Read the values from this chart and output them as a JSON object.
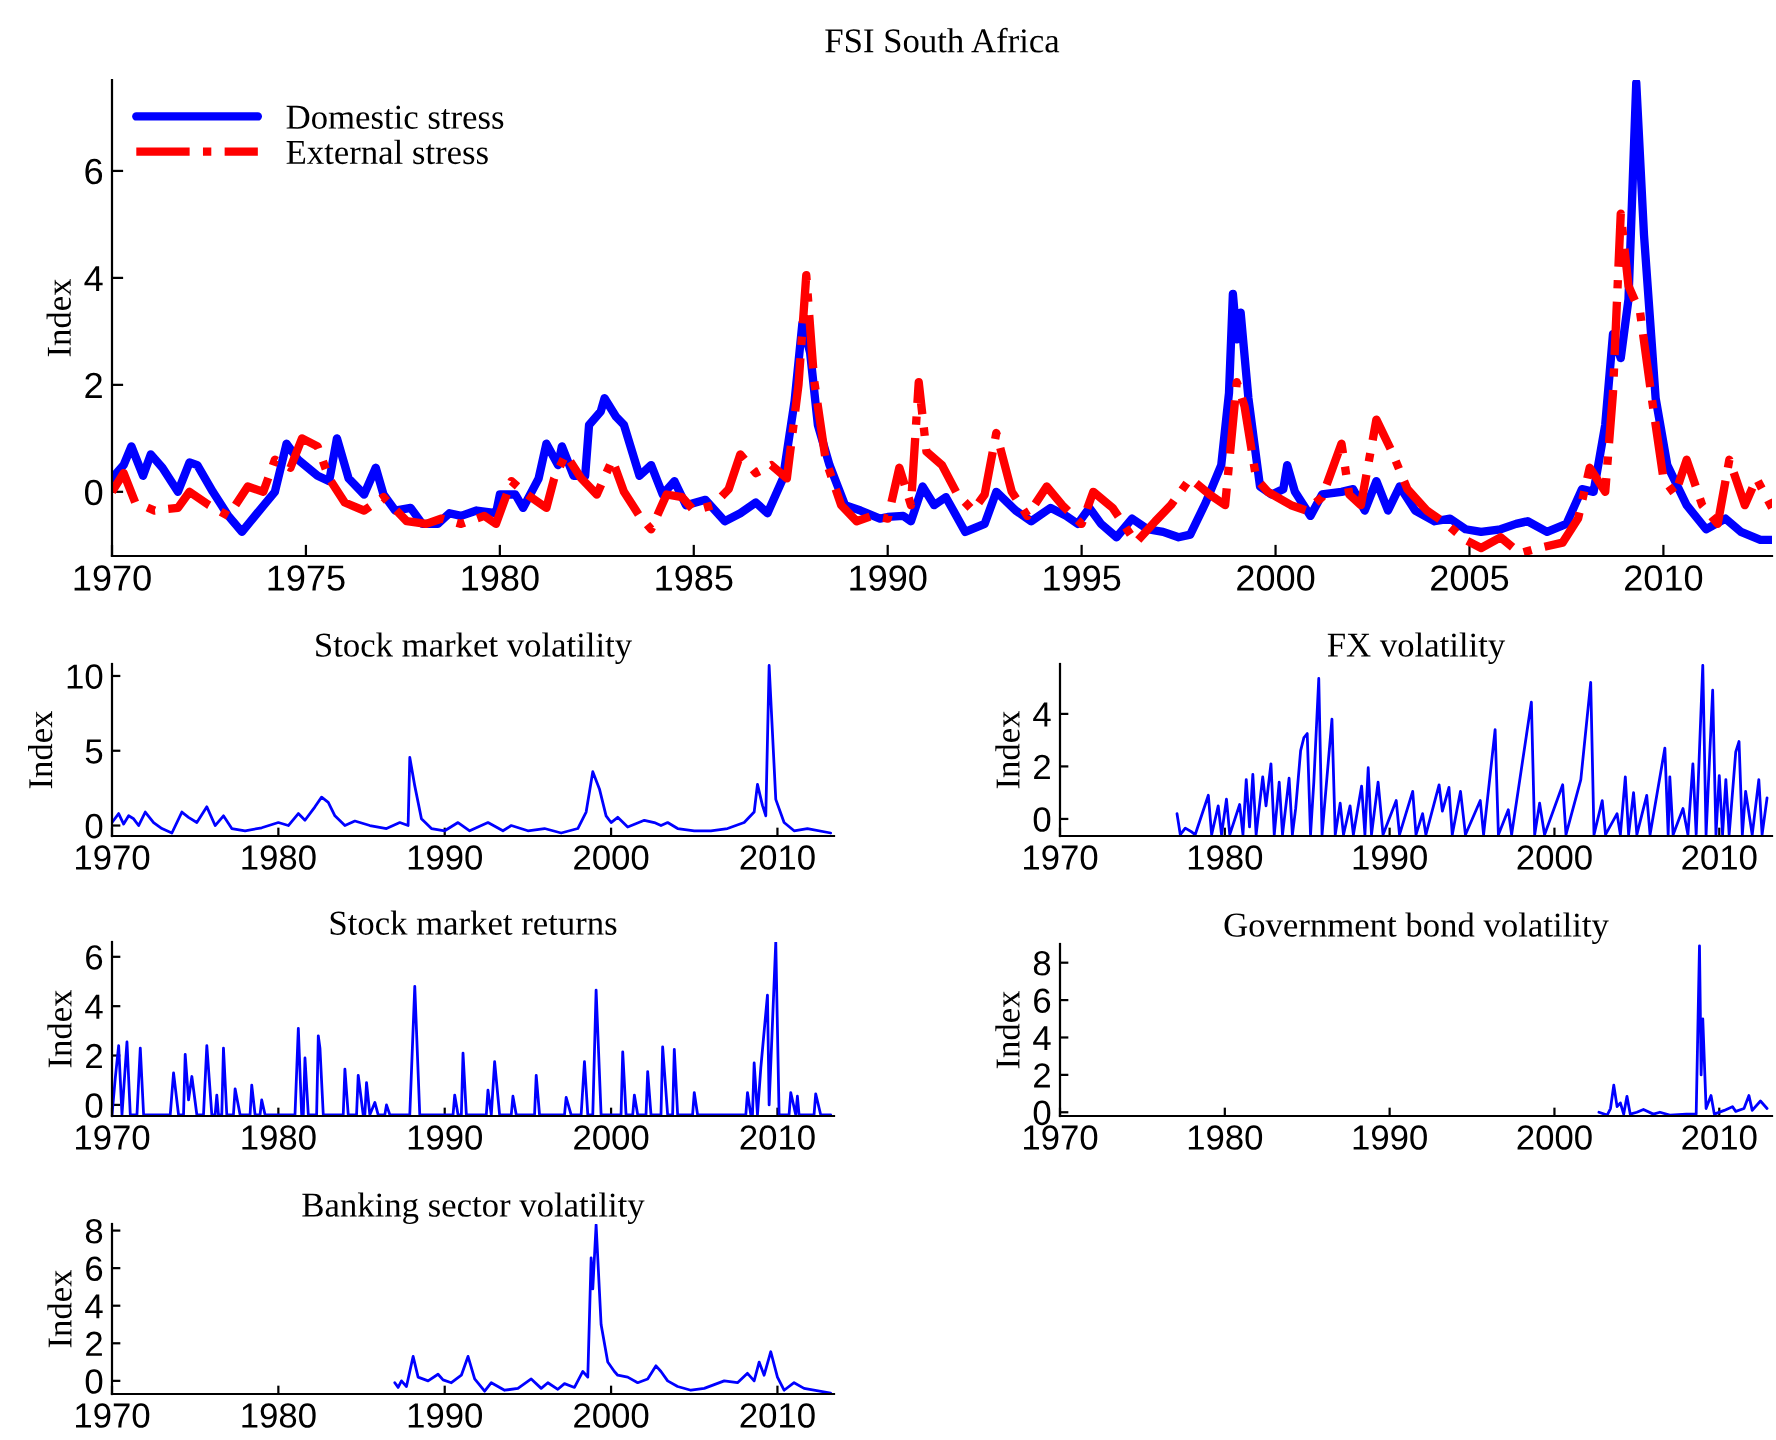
{
  "chart_data": [
    {
      "type": "line",
      "title": "FSI South Africa",
      "ylabel": "Index",
      "xlim": [
        1970,
        2012.8
      ],
      "ylim": [
        -1.2,
        7.7
      ],
      "xticks": [
        1970,
        1975,
        1980,
        1985,
        1990,
        1995,
        2000,
        2005,
        2010
      ],
      "yticks": [
        0,
        2,
        4,
        6
      ],
      "legend": "top left",
      "series": [
        {
          "name": "Domestic stress",
          "color": "#0000ff",
          "line_style": "solid",
          "x": [
            1970.0,
            1970.3,
            1970.5,
            1970.8,
            1971.0,
            1971.3,
            1971.7,
            1972.0,
            1972.2,
            1972.6,
            1973.0,
            1973.35,
            1973.8,
            1974.2,
            1974.5,
            1974.8,
            1975.3,
            1975.6,
            1975.8,
            1976.1,
            1976.5,
            1976.8,
            1977.0,
            1977.3,
            1977.7,
            1978.0,
            1978.4,
            1978.7,
            1979.0,
            1979.4,
            1979.9,
            1980.0,
            1980.4,
            1980.6,
            1981.0,
            1981.2,
            1981.5,
            1981.6,
            1981.9,
            1982.2,
            1982.3,
            1982.6,
            1982.7,
            1983.0,
            1983.2,
            1983.6,
            1983.9,
            1984.2,
            1984.5,
            1984.8,
            1985.3,
            1985.8,
            1986.2,
            1986.6,
            1986.9,
            1987.3,
            1987.6,
            1987.8,
            1988.0,
            1988.2,
            1988.5,
            1988.9,
            1989.3,
            1989.8,
            1990.0,
            1990.4,
            1990.6,
            1990.9,
            1991.2,
            1991.5,
            1992.0,
            1992.5,
            1992.8,
            1993.3,
            1993.7,
            1994.2,
            1994.6,
            1994.9,
            1995.2,
            1995.5,
            1995.9,
            1996.3,
            1996.7,
            1997.1,
            1997.5,
            1997.8,
            1998.2,
            1998.6,
            1998.8,
            1998.9,
            1999.0,
            1999.1,
            1999.3,
            1999.6,
            1999.9,
            2000.2,
            2000.3,
            2000.5,
            2000.9,
            2001.2,
            2001.7,
            2002.0,
            2002.3,
            2002.6,
            2002.9,
            2003.2,
            2003.6,
            2004.1,
            2004.5,
            2004.9,
            2005.3,
            2005.8,
            2006.2,
            2006.5,
            2007.0,
            2007.5,
            2007.9,
            2008.2,
            2008.5,
            2008.7,
            2008.9,
            2009.1,
            2009.3,
            2009.5,
            2009.8,
            2010.1,
            2010.6,
            2011.1,
            2011.6,
            2012.0,
            2012.5,
            2012.8
          ],
          "values": [
            0.25,
            0.5,
            0.85,
            0.3,
            0.7,
            0.45,
            0,
            0.55,
            0.5,
            0,
            -0.45,
            -0.75,
            -0.35,
            0,
            0.9,
            0.6,
            0.3,
            0.2,
            1.0,
            0.25,
            -0.05,
            0.45,
            -0.05,
            -0.35,
            -0.3,
            -0.6,
            -0.6,
            -0.4,
            -0.45,
            -0.35,
            -0.4,
            -0.05,
            -0.05,
            -0.3,
            0.25,
            0.9,
            0.5,
            0.85,
            0.3,
            0.3,
            1.25,
            1.5,
            1.75,
            1.4,
            1.25,
            0.3,
            0.5,
            -0.05,
            0.2,
            -0.25,
            -0.15,
            -0.55,
            -0.4,
            -0.2,
            -0.4,
            0.25,
            1.7,
            3.15,
            2.6,
            1.25,
            0.5,
            -0.25,
            -0.35,
            -0.5,
            -0.47,
            -0.45,
            -0.55,
            0.1,
            -0.25,
            -0.1,
            -0.75,
            -0.6,
            0,
            -0.35,
            -0.55,
            -0.3,
            -0.45,
            -0.6,
            -0.3,
            -0.6,
            -0.85,
            -0.5,
            -0.7,
            -0.75,
            -0.85,
            -0.8,
            -0.2,
            0.5,
            1.85,
            3.7,
            2.85,
            3.35,
            1.75,
            0.1,
            -0.05,
            0.05,
            0.5,
            0,
            -0.45,
            -0.05,
            0,
            0.05,
            -0.35,
            0.2,
            -0.35,
            0.1,
            -0.35,
            -0.55,
            -0.5,
            -0.7,
            -0.75,
            -0.7,
            -0.6,
            -0.55,
            -0.75,
            -0.6,
            0.05,
            0,
            1.25,
            2.95,
            2.5,
            3.6,
            7.65,
            4.8,
            1.75,
            0.5,
            -0.25,
            -0.7,
            -0.5,
            -0.75,
            -0.9,
            -0.9
          ]
        },
        {
          "name": "External stress",
          "color": "#ff0000",
          "line_style": "dashed",
          "x": [
            1970.0,
            1970.3,
            1970.6,
            1971.1,
            1971.7,
            1972.0,
            1972.5,
            1973.0,
            1973.5,
            1973.9,
            1974.2,
            1974.6,
            1974.9,
            1975.3,
            1975.6,
            1976.0,
            1976.5,
            1977.0,
            1977.6,
            1978.1,
            1978.5,
            1979.0,
            1979.6,
            1979.9,
            1980.3,
            1980.7,
            1981.2,
            1981.4,
            1981.7,
            1982.1,
            1982.5,
            1982.9,
            1983.2,
            1983.6,
            1983.9,
            1984.3,
            1984.7,
            1985.0,
            1985.5,
            1985.9,
            1986.2,
            1986.6,
            1987.0,
            1987.4,
            1987.7,
            1987.9,
            1988.1,
            1988.4,
            1988.8,
            1989.2,
            1989.6,
            1990.0,
            1990.3,
            1990.6,
            1990.8,
            1991.0,
            1991.4,
            1991.8,
            1992.2,
            1992.5,
            1992.8,
            1993.2,
            1993.6,
            1994.1,
            1994.5,
            1995.0,
            1995.3,
            1995.8,
            1996.4,
            1996.9,
            1997.3,
            1997.8,
            1998.3,
            1998.7,
            1999.0,
            1999.2,
            1999.5,
            1999.8,
            2000.4,
            2000.8,
            2001.2,
            2001.7,
            2001.9,
            2002.2,
            2002.6,
            2003.0,
            2003.4,
            2003.9,
            2004.4,
            2004.9,
            2005.3,
            2005.8,
            2006.3,
            2006.8,
            2007.4,
            2007.8,
            2008.1,
            2008.5,
            2008.7,
            2008.9,
            2009.1,
            2009.4,
            2009.7,
            2010.0,
            2010.3,
            2010.6,
            2011.0,
            2011.4,
            2011.7,
            2012.1,
            2012.4,
            2012.8
          ],
          "values": [
            0,
            0.35,
            -0.2,
            -0.35,
            -0.3,
            0,
            -0.25,
            -0.45,
            0.1,
            0,
            0.6,
            0.45,
            1.0,
            0.85,
            0.25,
            -0.2,
            -0.35,
            -0.1,
            -0.55,
            -0.6,
            -0.5,
            -0.6,
            -0.45,
            -0.6,
            0.2,
            -0.05,
            -0.3,
            0.25,
            0.7,
            0.25,
            -0.05,
            0.6,
            0,
            -0.45,
            -0.7,
            -0.05,
            -0.1,
            -0.35,
            -0.25,
            0.05,
            0.7,
            0.35,
            0.5,
            0.25,
            2.0,
            4.05,
            2.1,
            0.6,
            -0.25,
            -0.55,
            -0.45,
            -0.5,
            0.45,
            -0.25,
            2.05,
            0.75,
            0.5,
            -0.05,
            -0.35,
            -0.05,
            1.1,
            0,
            -0.45,
            0.1,
            -0.25,
            -0.6,
            0,
            -0.3,
            -0.95,
            -0.55,
            -0.25,
            0.25,
            -0.05,
            -0.25,
            2.05,
            1.6,
            0.25,
            0,
            -0.25,
            -0.35,
            -0.1,
            0.9,
            -0.05,
            -0.25,
            1.35,
            0.75,
            0.05,
            -0.35,
            -0.6,
            -0.9,
            -1.05,
            -0.85,
            -1.15,
            -1.05,
            -0.95,
            -0.5,
            0.45,
            0,
            1.85,
            5.2,
            3.85,
            3.35,
            1.75,
            0.25,
            -0.05,
            0.6,
            -0.25,
            -0.6,
            0.6,
            -0.25,
            0.25,
            -0.3
          ]
        }
      ]
    },
    {
      "type": "line",
      "title": "Stock market volatility",
      "ylabel": "Index",
      "xlim": [
        1970,
        2013.4
      ],
      "ylim": [
        -0.7,
        10.8
      ],
      "xticks": [
        1970,
        1980,
        1990,
        2000,
        2010
      ],
      "yticks": [
        0,
        5,
        10
      ],
      "series": [
        {
          "color": "#0000ff",
          "x": [
            1970.0,
            1970.4,
            1970.7,
            1971.0,
            1971.3,
            1971.6,
            1972.0,
            1972.5,
            1973.0,
            1973.6,
            1974.2,
            1974.6,
            1975.1,
            1975.7,
            1976.2,
            1976.7,
            1977.2,
            1978.0,
            1979.0,
            1980.0,
            1980.6,
            1981.2,
            1981.6,
            1982.2,
            1982.6,
            1983.0,
            1983.4,
            1984.0,
            1984.6,
            1985.5,
            1986.5,
            1987.3,
            1987.8,
            1987.9,
            1988.2,
            1988.6,
            1989.2,
            1990.0,
            1990.8,
            1991.5,
            1992.6,
            1993.5,
            1994.0,
            1995.0,
            1996.0,
            1997.0,
            1998.0,
            1998.5,
            1998.9,
            1999.3,
            1999.7,
            2000.0,
            2000.4,
            2001.0,
            2002.0,
            2002.6,
            2003.0,
            2003.4,
            2004.0,
            2005.0,
            2006.0,
            2007.0,
            2008.0,
            2008.6,
            2008.8,
            2009.1,
            2009.3,
            2009.5,
            2009.9,
            2010.4,
            2011.0,
            2011.8,
            2013.2
          ],
          "values": [
            0.2,
            0.8,
            0.1,
            0.65,
            0.45,
            0,
            0.9,
            0.2,
            -0.2,
            -0.5,
            0.9,
            0.55,
            0.2,
            1.25,
            0,
            0.65,
            -0.2,
            -0.35,
            -0.15,
            0.2,
            0,
            0.8,
            0.35,
            1.25,
            1.9,
            1.55,
            0.65,
            0,
            0.3,
            0,
            -0.2,
            0.2,
            0,
            4.55,
            2.65,
            0.45,
            -0.2,
            -0.35,
            0.2,
            -0.35,
            0.2,
            -0.35,
            0,
            -0.35,
            -0.2,
            -0.5,
            -0.2,
            0.9,
            3.6,
            2.45,
            0.65,
            0.2,
            0.55,
            -0.1,
            0.35,
            0.2,
            0,
            0.2,
            -0.2,
            -0.35,
            -0.35,
            -0.2,
            0.2,
            0.9,
            2.75,
            1.35,
            0.65,
            10.7,
            1.75,
            0.2,
            -0.35,
            -0.2,
            -0.5
          ]
        }
      ]
    },
    {
      "type": "line",
      "title": "FX volatility",
      "ylabel": "Index",
      "xlim": [
        1970,
        2013.2
      ],
      "ylim": [
        -0.65,
        5.9
      ],
      "xticks": [
        1970,
        1980,
        1990,
        2000,
        2010
      ],
      "yticks": [
        0,
        2,
        4
      ],
      "series": [
        {
          "color": "#0000ff",
          "x": [
            1977.1,
            1977.3,
            1977.6,
            1978.0,
            1978.2,
            1979.0,
            1979.2,
            1979.6,
            1979.8,
            1980.1,
            1980.3,
            1980.9,
            1981.1,
            1981.3,
            1981.5,
            1981.7,
            1981.9,
            1982.3,
            1982.5,
            1982.8,
            1983.0,
            1983.3,
            1983.5,
            1983.9,
            1984.1,
            1984.3,
            1984.6,
            1984.8,
            1985.0,
            1985.2,
            1985.4,
            1985.7,
            1985.9,
            1986.5,
            1986.7,
            1987.0,
            1987.2,
            1987.6,
            1987.8,
            1988.3,
            1988.5,
            1988.7,
            1988.9,
            1989.3,
            1989.6,
            1990.4,
            1990.6,
            1991.4,
            1991.6,
            1992.0,
            1992.2,
            1993.0,
            1993.2,
            1993.6,
            1993.8,
            1994.3,
            1994.6,
            1995.5,
            1995.7,
            1996.4,
            1996.6,
            1997.2,
            1997.4,
            1998.6,
            1998.8,
            1999.1,
            1999.4,
            2000.5,
            2000.7,
            2001.6,
            2002.2,
            2002.4,
            2002.9,
            2003.1,
            2003.8,
            2004.0,
            2004.3,
            2004.5,
            2004.8,
            2005.0,
            2005.6,
            2005.8,
            2006.7,
            2006.9,
            2007.0,
            2007.2,
            2007.8,
            2008.1,
            2008.4,
            2008.6,
            2009.0,
            2009.2,
            2009.6,
            2009.8,
            2010.0,
            2010.2,
            2010.4,
            2010.6,
            2011.0,
            2011.2,
            2011.4,
            2011.6,
            2012.0,
            2012.4,
            2012.6,
            2012.9
          ],
          "values": [
            0.2,
            -0.6,
            -0.35,
            -0.5,
            -0.6,
            0.9,
            -0.6,
            0.5,
            -0.6,
            0.75,
            -0.6,
            0.55,
            -0.6,
            1.5,
            -0.3,
            1.7,
            -0.6,
            1.6,
            0.5,
            2.1,
            -0.6,
            1.4,
            -0.6,
            1.55,
            -0.6,
            0.4,
            2.6,
            3.1,
            3.25,
            -0.6,
            1.4,
            5.35,
            -0.6,
            3.8,
            -0.6,
            0.6,
            -0.6,
            0.5,
            -0.6,
            1.25,
            -0.6,
            1.95,
            -0.6,
            1.4,
            -0.6,
            0.7,
            -0.6,
            1.05,
            -0.6,
            0.2,
            -0.6,
            1.3,
            0.3,
            1.2,
            -0.6,
            1.05,
            -0.6,
            0.7,
            -0.6,
            3.4,
            -0.6,
            0.35,
            -0.6,
            4.45,
            -0.6,
            0.6,
            -0.6,
            1.3,
            -0.6,
            1.5,
            5.2,
            -0.6,
            0.7,
            -0.6,
            0.2,
            -0.6,
            1.6,
            -0.6,
            1.0,
            -0.6,
            0.9,
            -0.6,
            2.7,
            -0.6,
            1.6,
            -0.6,
            0.4,
            -0.6,
            2.1,
            -0.6,
            5.85,
            -0.6,
            4.9,
            -0.6,
            1.65,
            -0.6,
            1.5,
            -0.6,
            2.55,
            2.95,
            -0.6,
            1.05,
            -0.6,
            1.5,
            -0.6,
            0.8
          ]
        }
      ]
    },
    {
      "type": "line",
      "title": "Stock market returns",
      "ylabel": "Index",
      "xlim": [
        1970,
        2013.4
      ],
      "ylim": [
        -0.45,
        6.6
      ],
      "xticks": [
        1970,
        1980,
        1990,
        2000,
        2010
      ],
      "yticks": [
        0,
        2,
        4,
        6
      ],
      "series": [
        {
          "color": "#0000ff",
          "x": [
            1970.0,
            1970.2,
            1970.4,
            1970.6,
            1970.9,
            1971.1,
            1971.5,
            1971.7,
            1971.9,
            1973.5,
            1973.7,
            1974.0,
            1974.3,
            1974.4,
            1974.6,
            1974.8,
            1975.1,
            1975.5,
            1975.7,
            1976.0,
            1976.2,
            1976.3,
            1976.4,
            1976.6,
            1976.7,
            1976.9,
            1977.3,
            1977.4,
            1977.7,
            1978.3,
            1978.4,
            1978.6,
            1978.9,
            1979.0,
            1979.2,
            1981.0,
            1981.2,
            1981.4,
            1981.5,
            1981.6,
            1981.8,
            1982.3,
            1982.4,
            1982.5,
            1982.7,
            1983.9,
            1984.0,
            1984.2,
            1984.7,
            1984.8,
            1985.1,
            1985.2,
            1985.3,
            1985.5,
            1985.8,
            1986.0,
            1986.4,
            1986.5,
            1986.7,
            1987.9,
            1988.2,
            1988.5,
            1990.5,
            1990.6,
            1990.8,
            1991.0,
            1991.1,
            1991.3,
            1992.5,
            1992.6,
            1992.8,
            1993.0,
            1993.3,
            1994.0,
            1994.1,
            1994.3,
            1995.4,
            1995.5,
            1995.7,
            1997.2,
            1997.3,
            1997.6,
            1998.2,
            1998.4,
            1998.6,
            1998.9,
            1999.1,
            1999.4,
            2000.6,
            2000.7,
            2000.9,
            2001.3,
            2001.4,
            2001.6,
            2002.1,
            2002.2,
            2002.4,
            2003.0,
            2003.1,
            2003.4,
            2003.7,
            2003.8,
            2004.0,
            2004.9,
            2005.0,
            2005.2,
            2008.1,
            2008.2,
            2008.4,
            2008.5,
            2008.6,
            2008.8,
            2009.0,
            2009.4,
            2009.5,
            2009.9,
            2010.1,
            2010.7,
            2010.8,
            2011.1,
            2011.2,
            2011.3,
            2012.2,
            2012.3,
            2012.6,
            2013.2
          ],
          "values": [
            -0.4,
            1.1,
            2.4,
            -0.4,
            2.55,
            -0.4,
            -0.4,
            2.3,
            -0.4,
            -0.4,
            1.3,
            -0.4,
            -0.4,
            2.05,
            0.2,
            1.15,
            -0.4,
            -0.4,
            2.4,
            -0.4,
            -0.4,
            0.4,
            -0.4,
            -0.4,
            2.3,
            -0.4,
            -0.4,
            0.65,
            -0.4,
            -0.4,
            0.8,
            -0.4,
            -0.4,
            0.2,
            -0.4,
            -0.4,
            3.1,
            -0.4,
            -0.4,
            1.9,
            -0.4,
            -0.4,
            2.8,
            2.3,
            -0.4,
            -0.4,
            1.45,
            -0.4,
            -0.4,
            1.2,
            -0.4,
            -0.4,
            0.9,
            -0.4,
            0.1,
            -0.4,
            -0.4,
            0,
            -0.4,
            -0.4,
            4.8,
            -0.4,
            -0.4,
            0.4,
            -0.4,
            -0.4,
            2.1,
            -0.4,
            -0.4,
            0.6,
            -0.4,
            1.75,
            -0.4,
            -0.4,
            0.35,
            -0.4,
            -0.4,
            1.2,
            -0.4,
            -0.4,
            0.3,
            -0.4,
            -0.4,
            1.75,
            -0.4,
            -0.4,
            4.65,
            -0.4,
            -0.4,
            2.15,
            -0.4,
            -0.4,
            0.4,
            -0.4,
            -0.4,
            1.35,
            -0.4,
            -0.4,
            2.35,
            -0.4,
            -0.4,
            2.25,
            -0.4,
            -0.4,
            0.5,
            -0.4,
            -0.4,
            0.5,
            -0.4,
            -0.4,
            1.7,
            -0.4,
            1.5,
            4.45,
            0,
            6.6,
            -0.4,
            -0.4,
            0.5,
            -0.4,
            0.35,
            -0.4,
            -0.4,
            0.45,
            -0.4,
            -0.4
          ]
        }
      ]
    },
    {
      "type": "line",
      "title": "Government bond volatility",
      "ylabel": "Index",
      "xlim": [
        1970,
        2013.2
      ],
      "ylim": [
        -0.2,
        9.0
      ],
      "xticks": [
        1970,
        1980,
        1990,
        2000,
        2010
      ],
      "yticks": [
        0,
        2,
        4,
        6,
        8
      ],
      "series": [
        {
          "color": "#0000ff",
          "x": [
            2002.7,
            2003.2,
            2003.4,
            2003.6,
            2003.8,
            2004.0,
            2004.2,
            2004.4,
            2004.6,
            2005.0,
            2005.4,
            2006.0,
            2006.4,
            2007.0,
            2008.0,
            2008.6,
            2008.8,
            2008.9,
            2009.0,
            2009.2,
            2009.5,
            2009.7,
            2010.3,
            2010.8,
            2011.0,
            2011.5,
            2011.8,
            2012.0,
            2012.5,
            2012.9
          ],
          "values": [
            0,
            -0.15,
            0.2,
            1.45,
            0.3,
            0.5,
            -0.1,
            0.85,
            -0.1,
            0,
            0.15,
            -0.1,
            0,
            -0.15,
            -0.1,
            -0.1,
            8.9,
            2.0,
            5.0,
            0.2,
            0.9,
            -0.1,
            0.1,
            0.3,
            0.05,
            0.2,
            0.9,
            0.1,
            0.6,
            0.2
          ]
        }
      ]
    },
    {
      "type": "line",
      "title": "Banking sector volatility",
      "ylabel": "Index",
      "xlim": [
        1970,
        2013.4
      ],
      "ylim": [
        -0.7,
        8.35
      ],
      "xticks": [
        1970,
        1980,
        1990,
        2000,
        2010
      ],
      "yticks": [
        0,
        2,
        4,
        6,
        8
      ],
      "series": [
        {
          "color": "#0000ff",
          "x": [
            1987.0,
            1987.2,
            1987.4,
            1987.7,
            1988.1,
            1988.4,
            1989.0,
            1989.6,
            1989.9,
            1990.4,
            1991.0,
            1991.4,
            1991.8,
            1992.4,
            1992.8,
            1993.6,
            1994.4,
            1995.2,
            1995.8,
            1996.2,
            1996.8,
            1997.2,
            1997.8,
            1998.3,
            1998.6,
            1998.8,
            1998.9,
            1999.1,
            1999.4,
            1999.8,
            2000.2,
            2000.4,
            2001.0,
            2001.6,
            2002.2,
            2002.7,
            2003.0,
            2003.4,
            2004.0,
            2004.8,
            2005.6,
            2006.2,
            2006.8,
            2007.6,
            2008.2,
            2008.6,
            2008.9,
            2009.2,
            2009.6,
            2010.0,
            2010.4,
            2011.0,
            2011.6,
            2013.2
          ],
          "values": [
            -0.1,
            -0.35,
            0,
            -0.3,
            1.3,
            0.2,
            0,
            0.35,
            0.05,
            -0.1,
            0.3,
            1.3,
            0.1,
            -0.55,
            -0.1,
            -0.5,
            -0.4,
            0.1,
            -0.4,
            -0.1,
            -0.45,
            -0.15,
            -0.35,
            0.5,
            0.2,
            6.55,
            4.9,
            8.3,
            3.0,
            1.0,
            0.5,
            0.3,
            0.2,
            -0.1,
            0.1,
            0.8,
            0.5,
            0,
            -0.3,
            -0.5,
            -0.4,
            -0.2,
            0,
            -0.1,
            0.4,
            0,
            1.0,
            0.3,
            1.55,
            0.2,
            -0.5,
            -0.1,
            -0.4,
            -0.65
          ]
        }
      ]
    }
  ]
}
